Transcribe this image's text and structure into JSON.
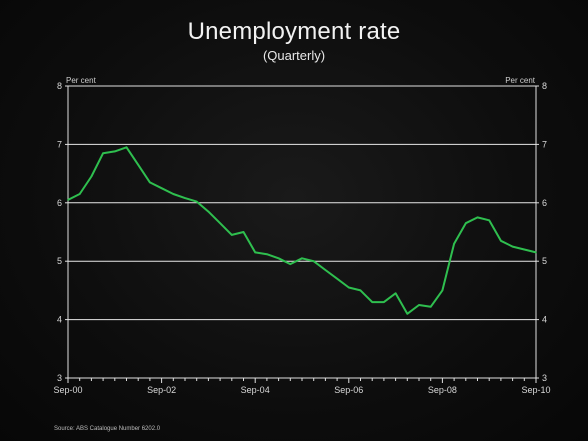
{
  "chart_data": {
    "type": "line",
    "title": "Unemployment rate",
    "subtitle": "(Quarterly)",
    "ylabel_left": "Per cent",
    "ylabel_right": "Per cent",
    "ylim": [
      3,
      8
    ],
    "yticks": [
      3,
      4,
      5,
      6,
      7,
      8
    ],
    "grid": true,
    "x_tick_labels": [
      "Sep-00",
      "Sep-02",
      "Sep-04",
      "Sep-06",
      "Sep-08",
      "Sep-10"
    ],
    "source": "Source: ABS Catalogue Number 6202.0",
    "series_color": "#2fbf4f",
    "series": [
      {
        "x": [
          "Sep-00",
          "Dec-00",
          "Mar-01",
          "Jun-01",
          "Sep-01",
          "Dec-01",
          "Mar-02",
          "Jun-02",
          "Sep-02",
          "Dec-02",
          "Mar-03",
          "Jun-03",
          "Sep-03",
          "Dec-03",
          "Mar-04",
          "Jun-04",
          "Sep-04",
          "Dec-04",
          "Mar-05",
          "Jun-05",
          "Sep-05",
          "Dec-05",
          "Mar-06",
          "Jun-06",
          "Sep-06",
          "Dec-06",
          "Mar-07",
          "Jun-07",
          "Sep-07",
          "Dec-07",
          "Mar-08",
          "Jun-08",
          "Sep-08",
          "Dec-08",
          "Mar-09",
          "Jun-09",
          "Sep-09",
          "Dec-09",
          "Mar-10",
          "Jun-10",
          "Sep-10"
        ],
        "values": [
          6.05,
          6.15,
          6.45,
          6.85,
          6.88,
          6.95,
          6.65,
          6.35,
          6.25,
          6.15,
          6.08,
          6.02,
          5.85,
          5.65,
          5.45,
          5.5,
          5.15,
          5.12,
          5.05,
          4.95,
          5.05,
          5.0,
          4.85,
          4.7,
          4.55,
          4.5,
          4.3,
          4.3,
          4.45,
          4.1,
          4.25,
          4.22,
          4.5,
          5.3,
          5.65,
          5.75,
          5.7,
          5.35,
          5.25,
          5.2,
          5.15
        ]
      }
    ]
  }
}
